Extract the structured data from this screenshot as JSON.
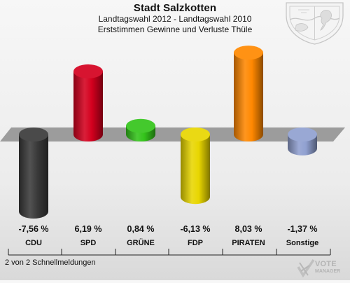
{
  "header": {
    "title": "Stadt Salzkotten",
    "subtitle": "Landtagswahl 2012 - Landtagswahl 2010",
    "subtitle2": "Erststimmen Gewinne und Verluste Thüle"
  },
  "footer": {
    "note": "2 von 2 Schnellmeldungen",
    "brand_line1": "VOTE",
    "brand_line2": "MANAGER"
  },
  "colors": {
    "CDU": "#3a3a3a",
    "SPD": "#d4001e",
    "GRUENE": "#34c41b",
    "FDP": "#e8d600",
    "PIRATEN": "#ff8800",
    "Sonstige": "#90a0d0"
  },
  "chart_data": {
    "type": "bar",
    "categories": [
      "CDU",
      "SPD",
      "GRÜNE",
      "FDP",
      "PIRATEN",
      "Sonstige"
    ],
    "values": [
      -7.56,
      6.19,
      0.84,
      -6.13,
      8.03,
      -1.37
    ],
    "value_labels": [
      "-7,56 %",
      "6,19 %",
      "0,84 %",
      "-6,13 %",
      "8,03 %",
      "-1,37 %"
    ],
    "title": "Stadt Salzkotten",
    "subtitle": "Landtagswahl 2012 - Landtagswahl 2010",
    "xlabel": "",
    "ylabel": "",
    "ylim": [
      -8.5,
      8.5
    ],
    "grid": false,
    "legend": "none"
  }
}
